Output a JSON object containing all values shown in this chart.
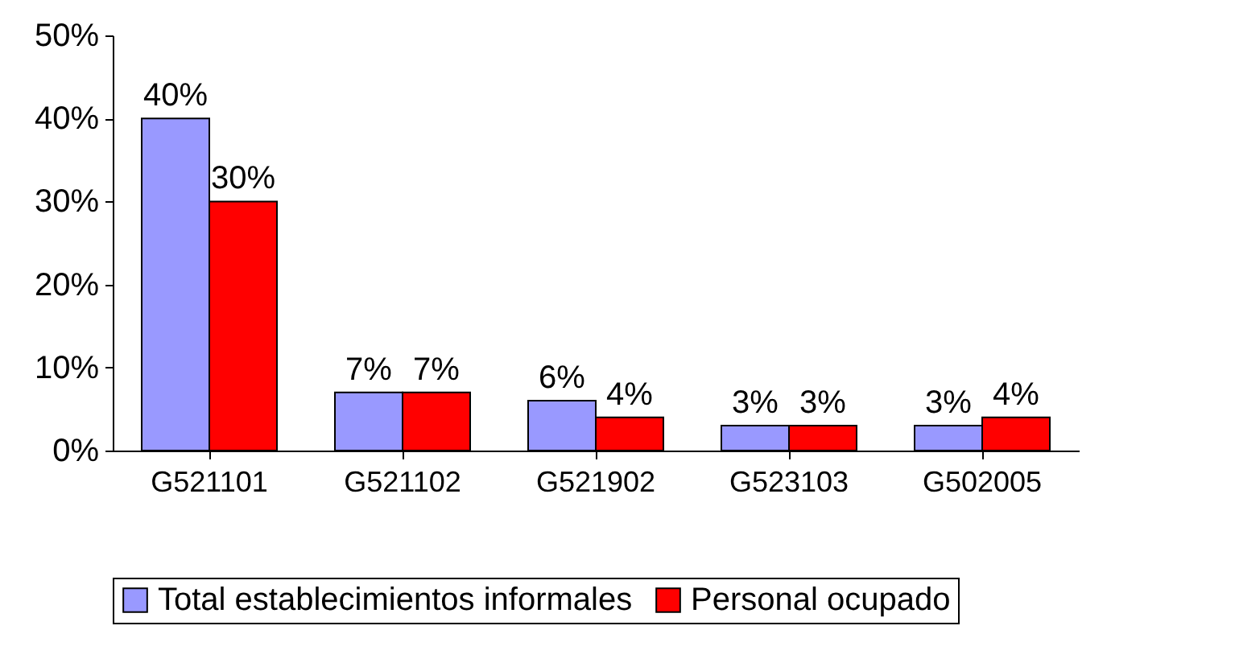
{
  "chart_data": {
    "type": "bar",
    "categories": [
      "G521101",
      "G521102",
      "G521902",
      "G523103",
      "G502005"
    ],
    "series": [
      {
        "name": "Total establecimientos informales",
        "color": "#9999ff",
        "values": [
          40,
          7,
          6,
          3,
          3
        ],
        "value_labels": [
          "40%",
          "7%",
          "6%",
          "3%",
          "3%"
        ]
      },
      {
        "name": "Personal ocupado",
        "color": "#ff0000",
        "values": [
          30,
          7,
          4,
          3,
          4
        ],
        "value_labels": [
          "30%",
          "7%",
          "4%",
          "3%",
          "4%"
        ]
      }
    ],
    "ylim": [
      0,
      50
    ],
    "yticks": [
      {
        "value": 0,
        "label": "0%"
      },
      {
        "value": 10,
        "label": "10%"
      },
      {
        "value": 20,
        "label": "20%"
      },
      {
        "value": 30,
        "label": "30%"
      },
      {
        "value": 40,
        "label": "40%"
      },
      {
        "value": 50,
        "label": "50%"
      }
    ],
    "legend": "bottom"
  }
}
